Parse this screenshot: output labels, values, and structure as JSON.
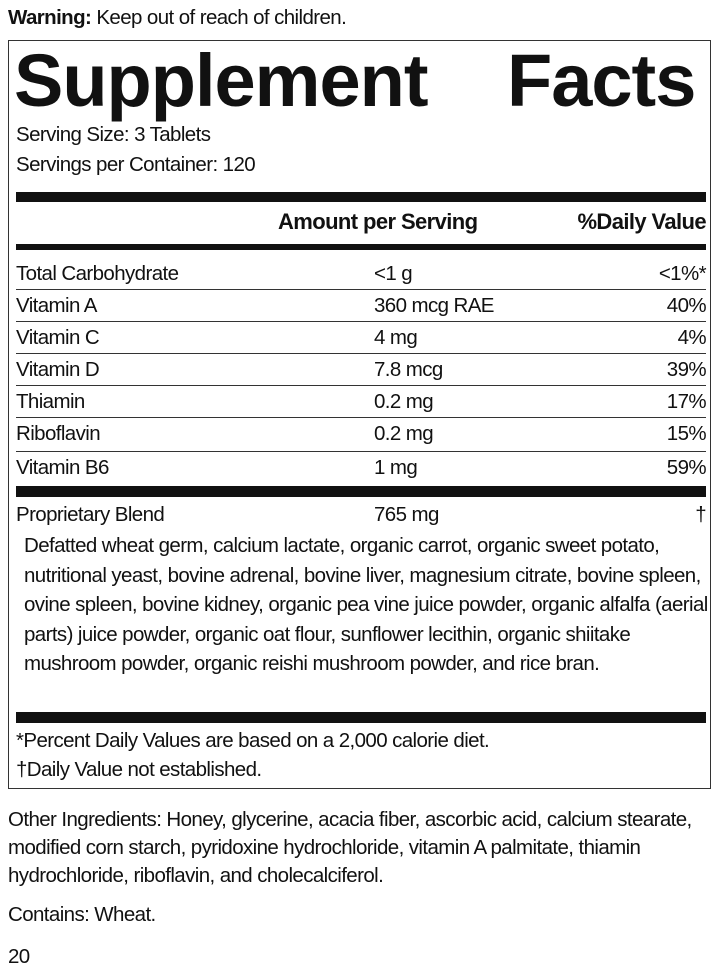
{
  "warning": {
    "label": "Warning:",
    "text": " Keep out of reach of children."
  },
  "title": "Supplement Facts",
  "serving_size": "Serving Size: 3 Tablets",
  "servings_per_container": "Servings per Container: 120",
  "header": {
    "amount": "Amount per Serving",
    "dv": "%Daily Value"
  },
  "rows": [
    {
      "name": "Total Carbohydrate",
      "amount": "<1 g",
      "dv": "<1%*"
    },
    {
      "name": "Vitamin A",
      "amount": "360 mcg RAE",
      "dv": "40%"
    },
    {
      "name": "Vitamin C",
      "amount": "4 mg",
      "dv": "4%"
    },
    {
      "name": "Vitamin D",
      "amount": "7.8 mcg",
      "dv": "39%"
    },
    {
      "name": "Thiamin",
      "amount": "0.2 mg",
      "dv": "17%"
    },
    {
      "name": "Riboflavin",
      "amount": "0.2 mg",
      "dv": "15%"
    },
    {
      "name": "Vitamin B6",
      "amount": "1 mg",
      "dv": "59%"
    }
  ],
  "blend": {
    "name": "Proprietary Blend",
    "amount": "765 mg",
    "dv": "†",
    "ingredients": "Defatted wheat germ, calcium lactate, organic carrot, organic sweet potato, nutritional yeast, bovine adrenal, bovine liver, magnesium citrate, bovine spleen, ovine spleen, bovine kidney, organic pea vine juice powder, organic alfalfa (aerial parts) juice powder, organic oat flour, sunflower lecithin, organic shiitake mushroom powder, organic reishi mushroom powder, and rice bran."
  },
  "footnotes": [
    "*Percent Daily Values are based on a 2,000 calorie diet.",
    "†Daily Value not established."
  ],
  "other_ingredients": "Other Ingredients: Honey, glycerine, acacia fiber, ascorbic acid, calcium stearate,  modified corn starch, pyridoxine hydrochloride, vitamin A palmitate, thiamin hydrochloride, riboflavin, and cholecalciferol.",
  "contains": "Contains: Wheat.",
  "page_number": "20"
}
